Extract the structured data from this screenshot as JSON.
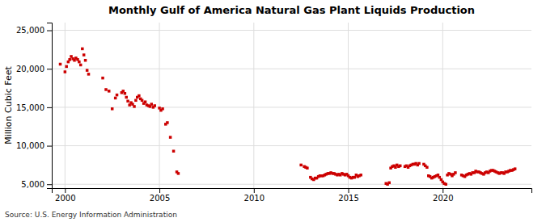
{
  "chart_data": {
    "type": "scatter",
    "title": "Monthly Gulf of America Natural Gas Plant Liquids Production",
    "ylabel": "Million Cubic Feet",
    "annotation": "Source: U.S. Energy Information Administration",
    "color": "#cc0000",
    "marker": "square",
    "grid": true,
    "xlim": [
      1999.3,
      2024.7
    ],
    "xticks": [
      2000,
      2005,
      2010,
      2015,
      2020
    ],
    "ylim": [
      4500,
      26000
    ],
    "yticks": [
      {
        "value": 5000,
        "label": "5,000"
      },
      {
        "value": 10000,
        "label": "10,000"
      },
      {
        "value": 15000,
        "label": "15,000"
      },
      {
        "value": 20000,
        "label": "20,000"
      },
      {
        "value": 25000,
        "label": "25,000"
      }
    ],
    "x": [
      1999.75,
      2000.0,
      2000.08,
      2000.17,
      2000.25,
      2000.33,
      2000.42,
      2000.5,
      2000.58,
      2000.67,
      2000.75,
      2000.83,
      2000.92,
      2001.0,
      2001.08,
      2001.17,
      2001.25,
      2002.0,
      2002.17,
      2002.33,
      2002.5,
      2002.67,
      2002.75,
      2003.0,
      2003.08,
      2003.17,
      2003.25,
      2003.33,
      2003.42,
      2003.5,
      2003.58,
      2003.67,
      2003.75,
      2003.83,
      2003.92,
      2004.0,
      2004.08,
      2004.17,
      2004.25,
      2004.33,
      2004.42,
      2004.5,
      2004.58,
      2004.67,
      2004.75,
      2005.0,
      2005.08,
      2005.17,
      2005.33,
      2005.42,
      2005.58,
      2005.75,
      2005.92,
      2006.0,
      2012.5,
      2012.67,
      2012.75,
      2012.83,
      2013.0,
      2013.08,
      2013.17,
      2013.25,
      2013.33,
      2013.42,
      2013.5,
      2013.58,
      2013.67,
      2013.75,
      2013.83,
      2013.92,
      2014.0,
      2014.08,
      2014.17,
      2014.25,
      2014.33,
      2014.42,
      2014.5,
      2014.58,
      2014.67,
      2014.75,
      2014.83,
      2014.92,
      2015.0,
      2015.08,
      2015.17,
      2015.25,
      2015.33,
      2015.42,
      2015.5,
      2015.58,
      2015.67,
      2017.0,
      2017.08,
      2017.17,
      2017.25,
      2017.33,
      2017.42,
      2017.5,
      2017.58,
      2017.67,
      2017.75,
      2018.0,
      2018.08,
      2018.17,
      2018.25,
      2018.33,
      2018.42,
      2018.5,
      2018.58,
      2018.67,
      2018.75,
      2019.0,
      2019.08,
      2019.17,
      2019.25,
      2019.33,
      2019.42,
      2019.5,
      2019.58,
      2019.67,
      2019.75,
      2019.83,
      2019.92,
      2020.0,
      2020.08,
      2020.17,
      2020.25,
      2020.33,
      2020.42,
      2020.5,
      2020.58,
      2020.67,
      2021.0,
      2021.08,
      2021.17,
      2021.25,
      2021.33,
      2021.42,
      2021.5,
      2021.58,
      2021.67,
      2021.75,
      2021.83,
      2021.92,
      2022.0,
      2022.08,
      2022.17,
      2022.25,
      2022.33,
      2022.42,
      2022.5,
      2022.58,
      2022.67,
      2022.75,
      2022.83,
      2022.92,
      2023.0,
      2023.08,
      2023.17,
      2023.25,
      2023.33,
      2023.42,
      2023.5,
      2023.58,
      2023.67,
      2023.75,
      2023.83
    ],
    "values": [
      20600,
      19600,
      20300,
      20900,
      21200,
      21600,
      21300,
      21100,
      21400,
      21200,
      20900,
      20500,
      22600,
      21800,
      21100,
      19800,
      19300,
      18800,
      17300,
      17100,
      14800,
      16200,
      16600,
      16900,
      17100,
      16800,
      16300,
      15800,
      15300,
      15600,
      15400,
      15100,
      15900,
      16300,
      16500,
      16100,
      15900,
      15500,
      15700,
      15300,
      15200,
      15100,
      15400,
      15000,
      15200,
      14900,
      14600,
      14800,
      12800,
      13000,
      11100,
      9300,
      6600,
      6400,
      7500,
      7300,
      7200,
      7100,
      5900,
      5700,
      5600,
      5800,
      5800,
      6000,
      6100,
      6100,
      6100,
      6200,
      6300,
      6400,
      6400,
      6500,
      6400,
      6400,
      6300,
      6200,
      6300,
      6200,
      6400,
      6300,
      6200,
      6300,
      6100,
      5900,
      5800,
      5900,
      5900,
      6200,
      6000,
      6100,
      6200,
      5100,
      5000,
      5200,
      7100,
      7300,
      7400,
      7200,
      7500,
      7300,
      7400,
      7300,
      7400,
      7200,
      7400,
      7500,
      7600,
      7600,
      7700,
      7500,
      7700,
      7600,
      7400,
      7200,
      6100,
      6000,
      5800,
      5900,
      6000,
      6100,
      6200,
      5900,
      5600,
      5300,
      5100,
      5000,
      6200,
      6400,
      6300,
      6100,
      6300,
      6500,
      6200,
      6100,
      6000,
      6200,
      6300,
      6400,
      6300,
      6500,
      6500,
      6700,
      6600,
      6600,
      6500,
      6400,
      6300,
      6500,
      6600,
      6500,
      6700,
      6800,
      6800,
      6700,
      6600,
      6500,
      6400,
      6500,
      6500,
      6400,
      6600,
      6600,
      6700,
      6800,
      6800,
      6900,
      7000
    ]
  }
}
